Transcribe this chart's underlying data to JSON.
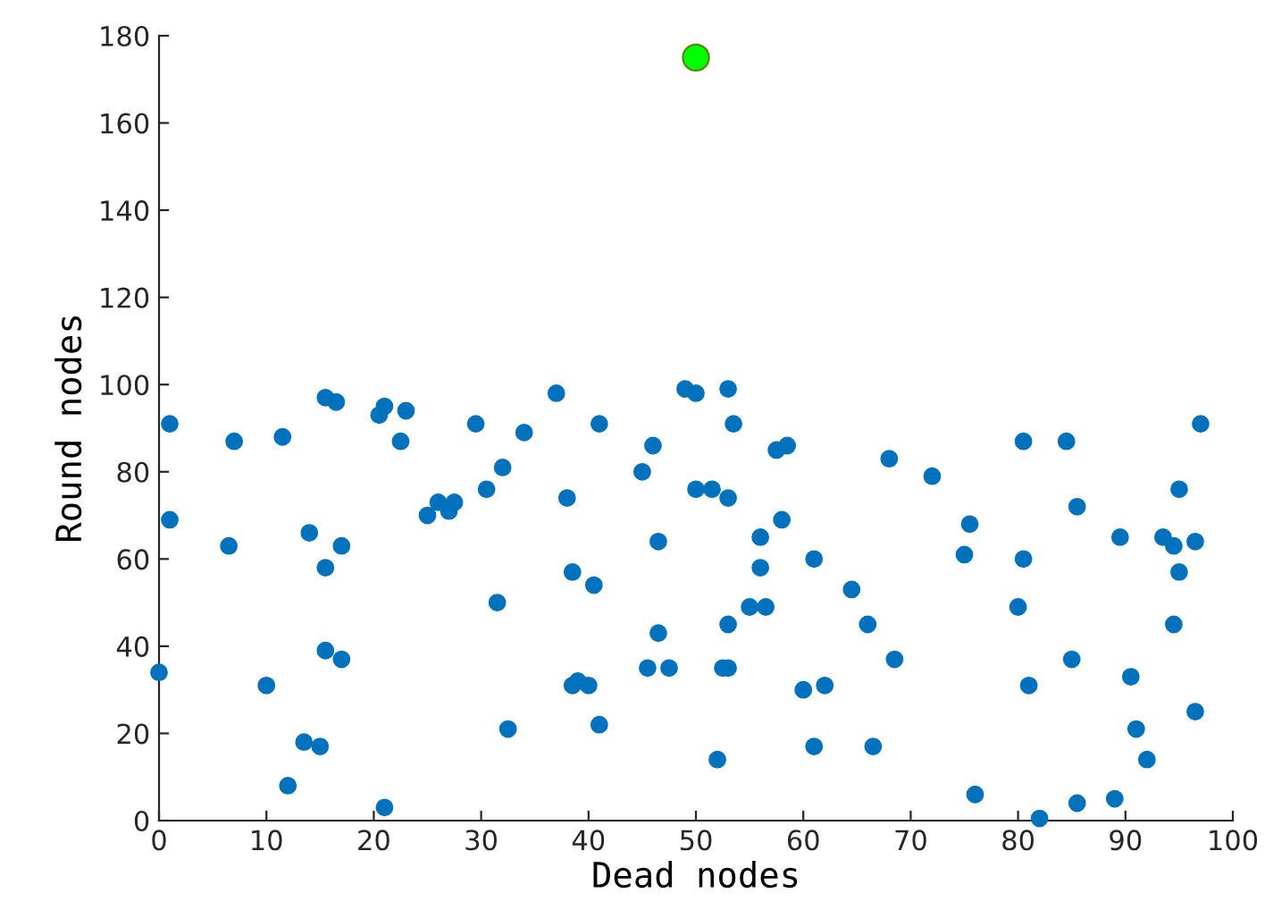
{
  "chart_data": {
    "type": "scatter",
    "xlabel": "Dead nodes",
    "ylabel": "Round nodes",
    "xlim": [
      0,
      100
    ],
    "ylim": [
      0,
      180
    ],
    "xticks": [
      0,
      10,
      20,
      30,
      40,
      50,
      60,
      70,
      80,
      90,
      100
    ],
    "yticks": [
      0,
      20,
      40,
      60,
      80,
      100,
      120,
      140,
      160,
      180
    ],
    "grid": false,
    "marker": "circle",
    "series": [
      {
        "color": "#0072bd",
        "x": [
          0,
          1,
          1,
          6.5,
          7,
          10,
          11.5,
          12,
          13.5,
          14,
          15,
          15.5,
          15.5,
          15.5,
          16.5,
          17,
          17,
          20.5,
          21,
          21,
          22.5,
          23,
          25,
          26,
          27,
          27.5,
          29.5,
          30.5,
          31.5,
          32,
          32.5,
          34,
          37,
          38,
          38.5,
          38.5,
          39,
          40,
          40.5,
          41,
          41,
          45,
          45.5,
          46,
          46.5,
          46.5,
          47.5,
          49,
          50,
          50,
          51.5,
          52,
          52.5,
          53,
          53,
          53,
          53.5,
          53,
          55,
          56,
          56,
          56.5,
          57.5,
          58,
          58.5,
          60,
          61,
          61,
          62,
          64.5,
          66,
          66.5,
          68,
          68.5,
          72,
          75,
          75.5,
          76,
          80,
          80.5,
          80.5,
          81,
          82,
          84.5,
          85,
          85.5,
          85.5,
          89,
          89.5,
          90.5,
          91,
          92,
          93.5,
          94.5,
          94.5,
          95,
          95,
          96.5,
          96.5,
          97
        ],
        "values": [
          34,
          69,
          91,
          63,
          87,
          31,
          88,
          8,
          18,
          66,
          17,
          97,
          58,
          39,
          96,
          37,
          63,
          93,
          95,
          3,
          87,
          94,
          70,
          73,
          71,
          73,
          91,
          76,
          50,
          81,
          21,
          89,
          98,
          74,
          57,
          31,
          32,
          31,
          54,
          91,
          22,
          80,
          35,
          86,
          64,
          43,
          35,
          99,
          98,
          76,
          76,
          14,
          35,
          74,
          99,
          35,
          91,
          45,
          49,
          58,
          65,
          49,
          85,
          69,
          86,
          30,
          60,
          17,
          31,
          53,
          45,
          17,
          83,
          37,
          79,
          61,
          68,
          6,
          49,
          87,
          60,
          31,
          0.5,
          87,
          37,
          72,
          4,
          5,
          65,
          33,
          21,
          14,
          65,
          63,
          45,
          76,
          57,
          25,
          64,
          91
        ]
      },
      {
        "color": "#00ff00",
        "x": [
          50
        ],
        "values": [
          175
        ]
      }
    ]
  }
}
